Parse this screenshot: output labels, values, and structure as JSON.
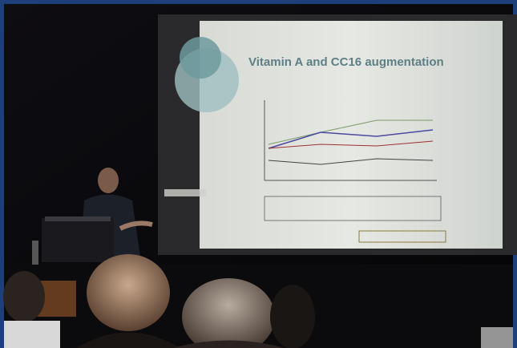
{
  "slide": {
    "title": "Vitamin A and CC16 augmentation"
  }
}
